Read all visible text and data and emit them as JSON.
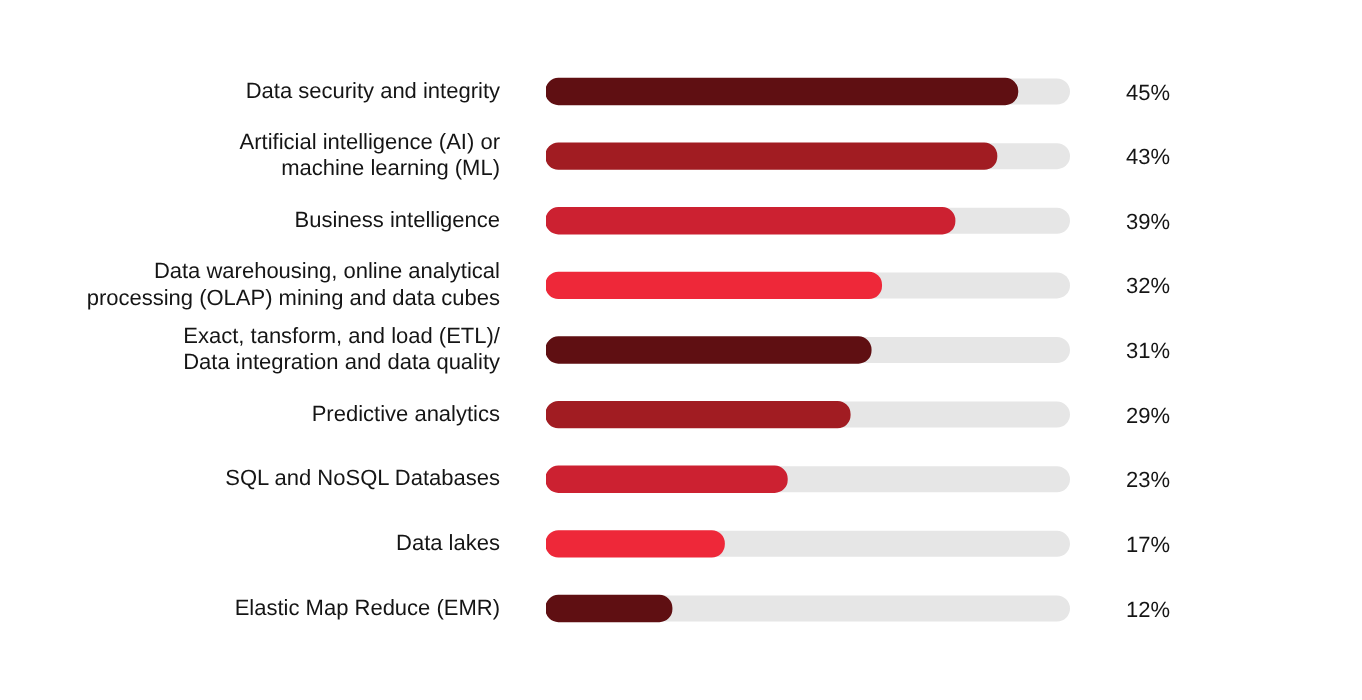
{
  "chart_data": {
    "type": "bar",
    "orientation": "horizontal",
    "categories": [
      "Data security and integrity",
      "Artificial intelligence (AI) or machine learning (ML)",
      "Business intelligence",
      "Data warehousing, online analytical processing (OLAP) mining and data cubes",
      "Exact, tansform, and load (ETL)/ Data integration and data quality",
      "Predictive analytics",
      "SQL and NoSQL Databases",
      "Data lakes",
      "Elastic Map Reduce (EMR)"
    ],
    "values": [
      45,
      43,
      39,
      32,
      31,
      29,
      23,
      17,
      12
    ],
    "colors": [
      "#5f0f12",
      "#a11c22",
      "#cc2131",
      "#ee2839",
      "#5f0f12",
      "#a11c22",
      "#cc2131",
      "#ee2839",
      "#5f0f12"
    ],
    "value_labels": [
      "45%",
      "43%",
      "39%",
      "32%",
      "31%",
      "29%",
      "23%",
      "17%",
      "12%"
    ],
    "xlim": [
      0,
      50
    ],
    "grid": false,
    "legend": false,
    "tick_labels": "y"
  }
}
